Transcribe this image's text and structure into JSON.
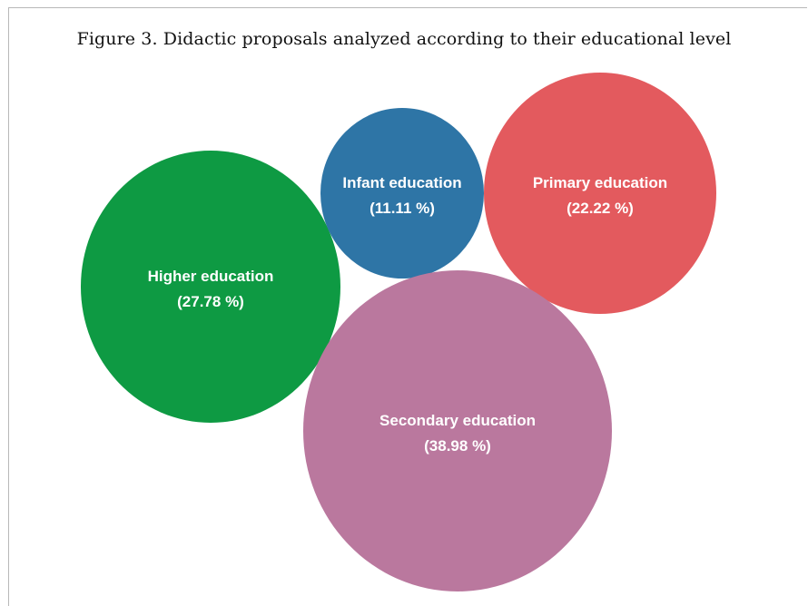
{
  "title": "Figure 3. Didactic proposals analyzed according to their educational level",
  "chart_data": {
    "type": "bubble",
    "title": "Figure 3. Didactic proposals analyzed according to their educational level",
    "series": [
      {
        "name": "Higher education",
        "value": 27.78,
        "display": "(27.78 %)",
        "color": "#0e9a43"
      },
      {
        "name": "Infant education",
        "value": 11.11,
        "display": "(11.11 %)",
        "color": "#2e75a6"
      },
      {
        "name": "Primary education",
        "value": 22.22,
        "display": "(22.22 %)",
        "color": "#e35a5e"
      },
      {
        "name": "Secondary education",
        "value": 38.98,
        "display": "(38.98 %)",
        "color": "#ba789e"
      }
    ]
  }
}
